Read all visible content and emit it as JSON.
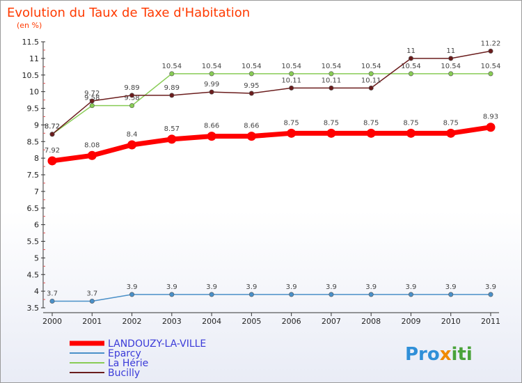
{
  "chart_data": {
    "type": "line",
    "title": "Evolution du Taux de Taxe d'Habitation",
    "subtitle": "(en %)",
    "x": [
      "2000",
      "2001",
      "2002",
      "2003",
      "2004",
      "2005",
      "2006",
      "2007",
      "2008",
      "2009",
      "2010",
      "2011"
    ],
    "ylim": [
      3.5,
      11.5
    ],
    "yticks": [
      "3.5",
      "4",
      "4.5",
      "5",
      "5.5",
      "6",
      "6.5",
      "7",
      "7.5",
      "8",
      "8.5",
      "9",
      "9.5",
      "10",
      "10.5",
      "11",
      "11.5"
    ],
    "grid": false,
    "legend_position": "bottom-left",
    "series": [
      {
        "name": "LANDOUZY-LA-VILLE",
        "color": "#ff0000",
        "values": [
          7.92,
          8.08,
          8.4,
          8.57,
          8.66,
          8.66,
          8.75,
          8.75,
          8.75,
          8.75,
          8.75,
          8.93
        ],
        "labels": [
          "7.92",
          "8.08",
          "8.4",
          "8.57",
          "8.66",
          "8.66",
          "8.75",
          "8.75",
          "8.75",
          "8.75",
          "8.75",
          "8.93"
        ]
      },
      {
        "name": "Eparcy",
        "color": "#4a90c8",
        "values": [
          3.7,
          3.7,
          3.9,
          3.9,
          3.9,
          3.9,
          3.9,
          3.9,
          3.9,
          3.9,
          3.9,
          3.9
        ],
        "labels": [
          "3.7",
          "3.7",
          "3.9",
          "3.9",
          "3.9",
          "3.9",
          "3.9",
          "3.9",
          "3.9",
          "3.9",
          "3.9",
          "3.9"
        ]
      },
      {
        "name": "La Hérie",
        "color": "#88cc55",
        "values": [
          8.72,
          9.58,
          9.58,
          10.54,
          10.54,
          10.54,
          10.54,
          10.54,
          10.54,
          10.54,
          10.54,
          10.54
        ],
        "labels": [
          "8.72",
          "9.58",
          "9.58",
          "10.54",
          "10.54",
          "10.54",
          "10.54",
          "10.54",
          "10.54",
          "10.54",
          "10.54",
          "10.54"
        ]
      },
      {
        "name": "Bucilly",
        "color": "#6b1d1d",
        "values": [
          8.72,
          9.72,
          9.89,
          9.89,
          9.99,
          9.95,
          10.11,
          10.11,
          10.11,
          11,
          11,
          11.22
        ],
        "labels": [
          "8.72",
          "9.72",
          "9.89",
          "9.89",
          "9.99",
          "9.95",
          "10.11",
          "10.11",
          "10.11",
          "11",
          "11",
          "11.22"
        ]
      }
    ]
  },
  "branding": {
    "logo": "Proxiti"
  }
}
